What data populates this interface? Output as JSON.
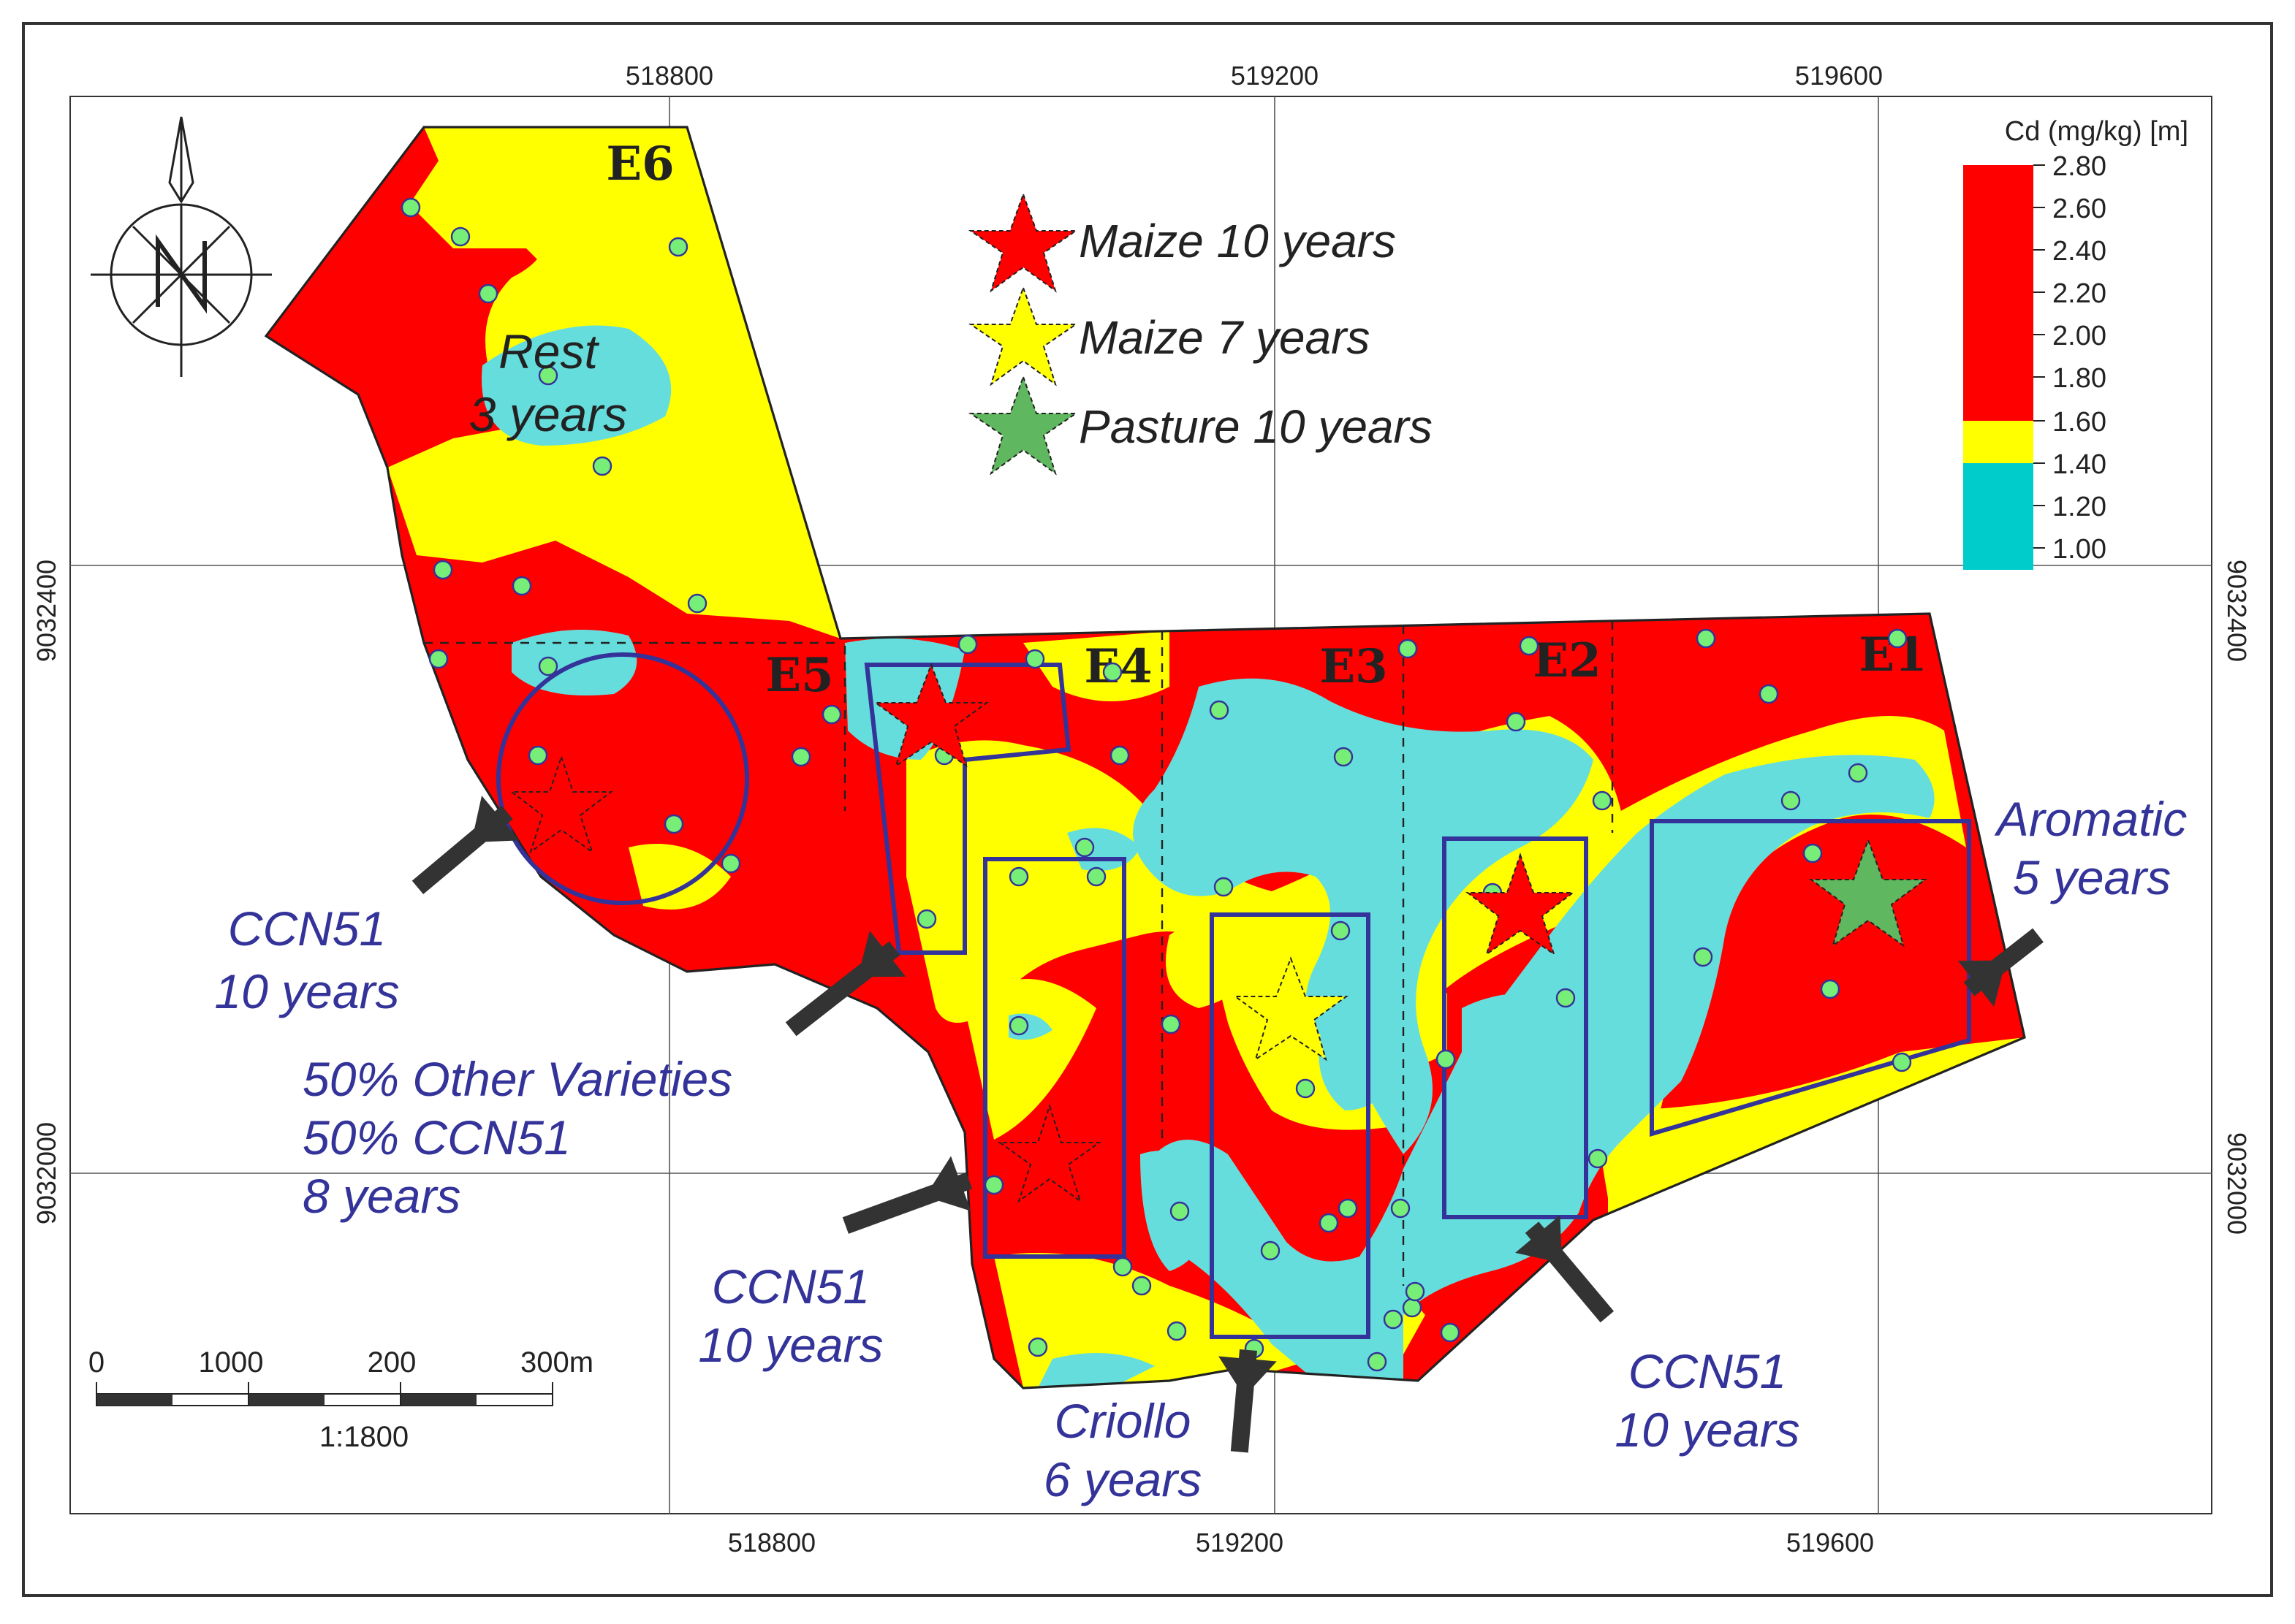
{
  "map": {
    "grid_x_labels": [
      "518800",
      "519200",
      "519600"
    ],
    "grid_y_labels": [
      "9032400",
      "9032000"
    ],
    "zones": [
      "E1",
      "E2",
      "E3",
      "E4",
      "E5",
      "E6"
    ]
  },
  "legend": {
    "title": "Cd (mg/kg) [m]",
    "ticks": [
      "2.80",
      "2.60",
      "2.40",
      "2.20",
      "2.00",
      "1.80",
      "1.60",
      "1.40",
      "1.20",
      "1.00"
    ],
    "classes": [
      {
        "range": "1.60 – 2.80",
        "color": "#ff0000"
      },
      {
        "range": "1.40 – 1.60",
        "color": "#ffff00"
      },
      {
        "range": "1.00 – 1.40",
        "color": "#00cccc"
      }
    ]
  },
  "symbols": [
    {
      "label": "Maize 10 years",
      "color": "#ff0000"
    },
    {
      "label": "Maize 7 years",
      "color": "#ffff00"
    },
    {
      "label": "Pasture 10 years",
      "color": "#5fb85f"
    }
  ],
  "annotations": {
    "rest_1": "Rest",
    "rest_2": "3 years",
    "ccn51_e5_1": "CCN51",
    "ccn51_e5_2": "10 years",
    "mix_1": "50% Other Varieties",
    "mix_2": "50% CCN51",
    "mix_3": "8 years",
    "ccn51_e4_1": "CCN51",
    "ccn51_e4_2": "10 years",
    "criollo_1": "Criollo",
    "criollo_2": "6 years",
    "ccn51_e2_1": "CCN51",
    "ccn51_e2_2": "10 years",
    "aromatic_1": "Aromatic",
    "aromatic_2": "5 years"
  },
  "scale_bar": {
    "labels": [
      "0",
      "1000",
      "200",
      "300m"
    ],
    "ratio": "1:1800"
  },
  "colors": {
    "high": "#ff0000",
    "mid": "#ffff00",
    "low": "#66dddd",
    "sample_point": "#77ee77",
    "plot_outline": "#333399",
    "annotation_text": "#333399",
    "arrow": "#333333"
  }
}
